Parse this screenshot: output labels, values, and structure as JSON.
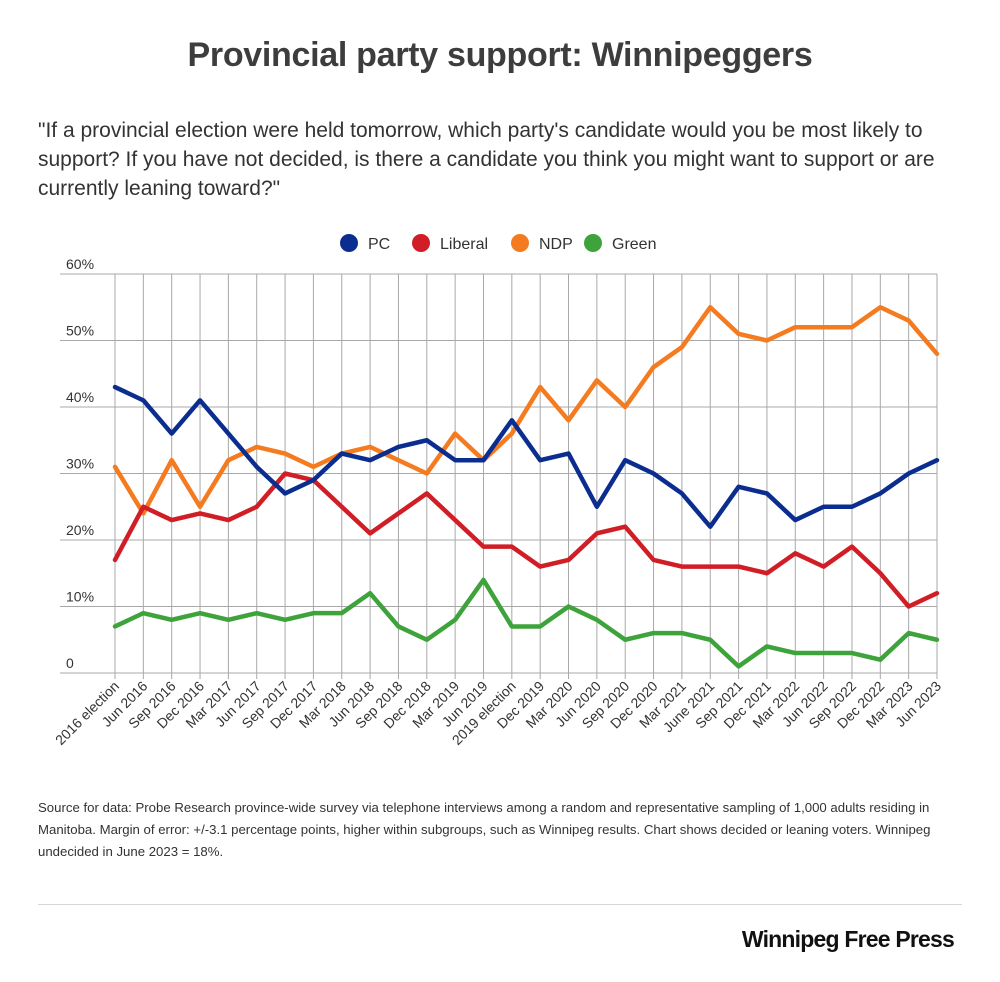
{
  "header": {
    "title": "Provincial party support: Winnipeggers",
    "subtitle": "\"If a provincial election were held tomorrow, which party's candidate would you be most likely to support? If you have not decided, is there a candidate you think you might want to support or are currently leaning toward?\""
  },
  "footer": {
    "note": "Source for data:  Probe Research province-wide survey via telephone interviews among a random and representative sampling of 1,000 adults residing in Manitoba. Margin of error: +/-3.1 percentage points, higher within subgroups, such as Winnipeg results. Chart shows decided or leaning voters. Winnipeg undecided in June 2023 = 18%.",
    "brand": "Winnipeg Free Press"
  },
  "chart_data": {
    "type": "line",
    "legend_position": "top-center",
    "grid": true,
    "ylim": [
      0,
      60
    ],
    "yticks": [
      0,
      10,
      20,
      30,
      40,
      50,
      60
    ],
    "ytick_labels": [
      "0",
      "10%",
      "20%",
      "30%",
      "40%",
      "50%",
      "60%"
    ],
    "categories": [
      "2016 election",
      "Jun 2016",
      "Sep 2016",
      "Dec 2016",
      "Mar 2017",
      "Jun 2017",
      "Sep 2017",
      "Dec 2017",
      "Mar 2018",
      "Jun 2018",
      "Sep 2018",
      "Dec 2018",
      "Mar 2019",
      "Jun 2019",
      "2019 election",
      "Dec 2019",
      "Mar 2020",
      "Jun 2020",
      "Sep 2020",
      "Dec 2020",
      "Mar 2021",
      "June 2021",
      "Sep 2021",
      "Dec 2021",
      "Mar 2022",
      "Jun 2022",
      "Sep 2022",
      "Dec 2022",
      "Mar 2023",
      "Jun 2023"
    ],
    "series": [
      {
        "name": "PC",
        "color": "#0b2d8f",
        "values": [
          43,
          41,
          36,
          41,
          36,
          31,
          27,
          29,
          33,
          32,
          34,
          35,
          32,
          32,
          38,
          32,
          33,
          25,
          32,
          30,
          27,
          22,
          28,
          27,
          23,
          25,
          25,
          27,
          30,
          32
        ]
      },
      {
        "name": "Liberal",
        "color": "#d11e26",
        "values": [
          17,
          25,
          23,
          24,
          23,
          25,
          30,
          29,
          25,
          21,
          24,
          27,
          23,
          19,
          19,
          16,
          17,
          21,
          22,
          17,
          16,
          16,
          16,
          15,
          18,
          16,
          19,
          15,
          10,
          12
        ]
      },
      {
        "name": "NDP",
        "color": "#f47b20",
        "values": [
          31,
          24,
          32,
          25,
          32,
          34,
          33,
          31,
          33,
          34,
          32,
          30,
          36,
          32,
          36,
          43,
          38,
          44,
          40,
          46,
          49,
          55,
          51,
          50,
          52,
          52,
          52,
          55,
          53,
          48
        ]
      },
      {
        "name": "Green",
        "color": "#3ea33a",
        "values": [
          7,
          9,
          8,
          9,
          8,
          9,
          8,
          9,
          9,
          12,
          7,
          5,
          8,
          14,
          7,
          7,
          10,
          8,
          5,
          6,
          6,
          5,
          1,
          4,
          3,
          3,
          3,
          2,
          6,
          5
        ]
      }
    ]
  }
}
